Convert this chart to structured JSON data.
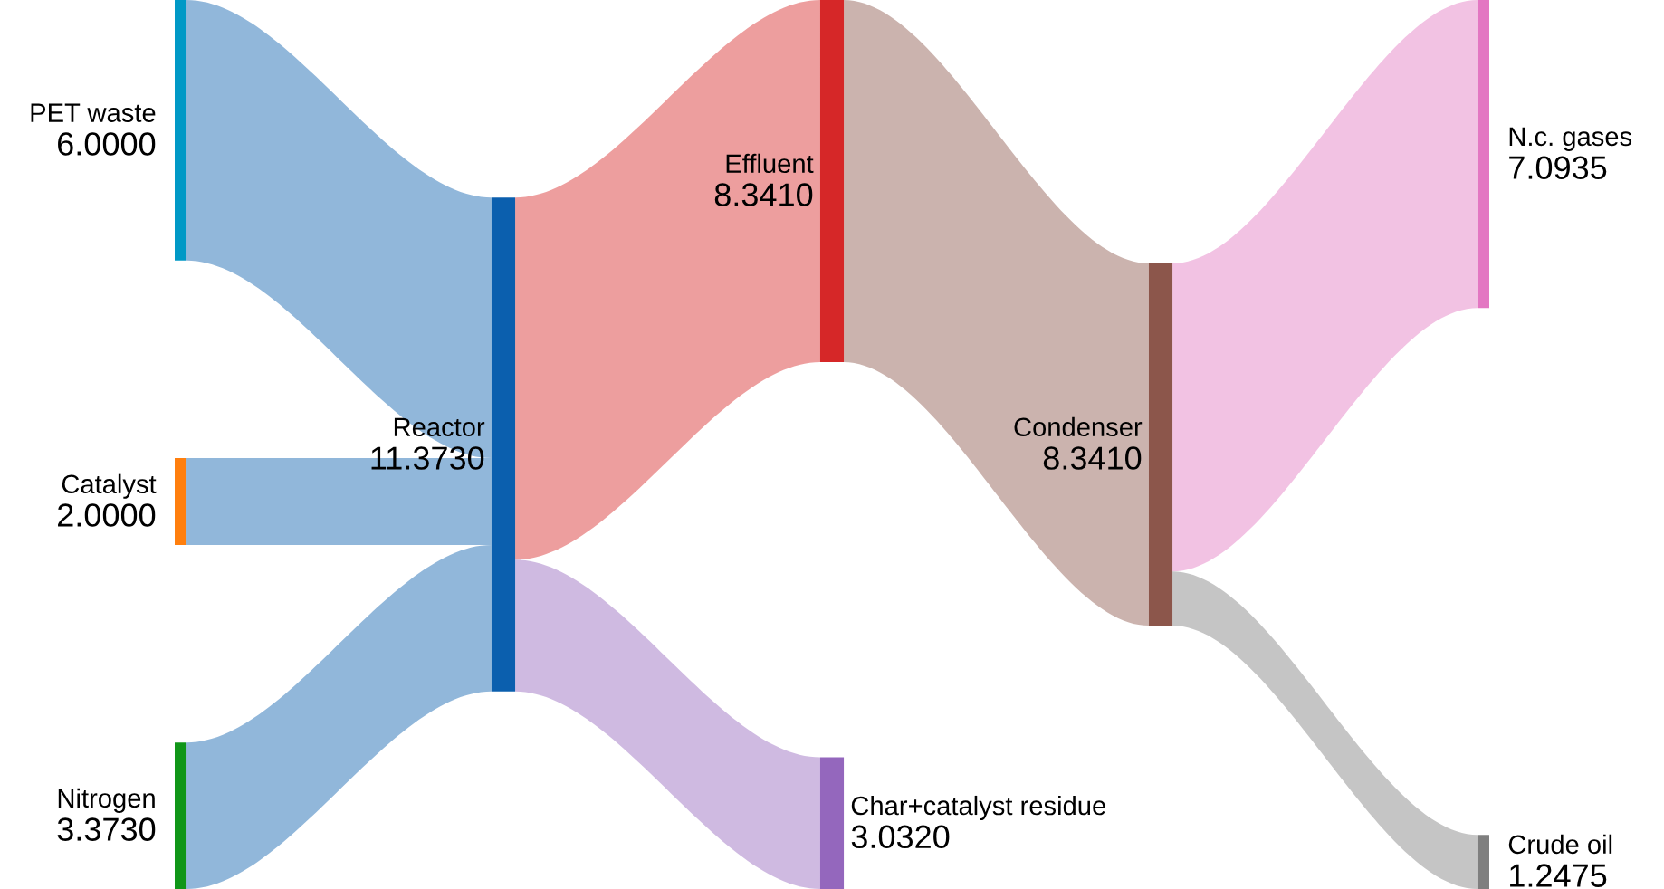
{
  "chart_data": {
    "type": "other",
    "categories": [
      "PET waste",
      "Catalyst",
      "Nitrogen",
      "Reactor",
      "Effluent",
      "Char+catalyst residue",
      "Condenser",
      "N.c. gases",
      "Crude oil"
    ],
    "series": [
      {
        "values": [
          6.0,
          2.0,
          3.373,
          null,
          null,
          null,
          null,
          null,
          null
        ],
        "value_labels": [
          "6.0000",
          "2.0000",
          "3.3730",
          null,
          null,
          null,
          null,
          null,
          null
        ]
      },
      {
        "values": [
          null,
          null,
          null,
          11.373,
          null,
          null,
          null,
          null,
          null
        ],
        "value_labels": [
          null,
          null,
          null,
          "11.3730",
          null,
          null,
          null,
          null,
          null
        ]
      },
      {
        "values": [
          null,
          null,
          null,
          null,
          8.341,
          3.032,
          null,
          null,
          null
        ],
        "value_labels": [
          null,
          null,
          null,
          null,
          "8.3410",
          "3.0320",
          null,
          null,
          null
        ]
      },
      {
        "values": [
          null,
          null,
          null,
          null,
          null,
          null,
          8.341,
          null,
          null
        ],
        "value_labels": [
          null,
          null,
          null,
          null,
          null,
          null,
          "8.3410",
          null,
          null
        ]
      },
      {
        "values": [
          null,
          null,
          null,
          null,
          null,
          null,
          null,
          7.0935,
          1.2475
        ],
        "value_labels": [
          null,
          null,
          null,
          null,
          null,
          null,
          null,
          "7.0935",
          "1.2475"
        ]
      }
    ],
    "colors": [
      "#0099c6",
      "#ff7f0e",
      "#109618",
      "#0b5fae",
      "#d62728",
      "#9467bd",
      "#8c564b",
      "#e377c2",
      "#7f7f7f"
    ]
  }
}
